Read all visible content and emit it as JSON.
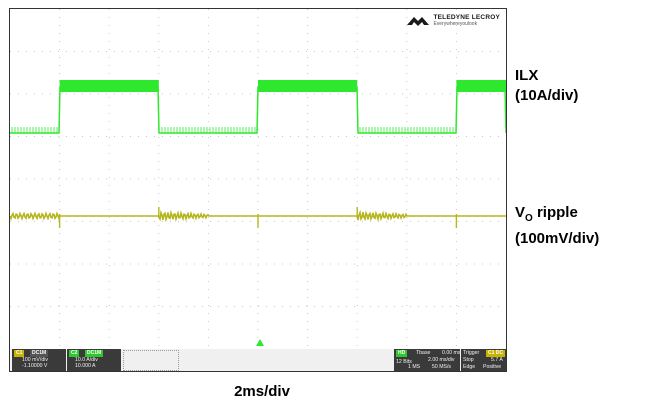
{
  "labels": {
    "ilx_name": "ILX",
    "ilx_scale": "(10A/div)",
    "vo_name_v": "V",
    "vo_name_sub": "O",
    "vo_name_rest": " ripple",
    "vo_scale": "(100mV/div)",
    "timebase": "2ms/div"
  },
  "logo": {
    "brand": "TELEDYNE LECROY",
    "tagline": "Everywhereyoulook"
  },
  "status_bar": {
    "ch1": {
      "badge": "C1",
      "tag": "DC1M",
      "scale": "100 mV/div",
      "offset": "-1.10000 V"
    },
    "ch2": {
      "badge": "C2",
      "tag": "DC1M",
      "scale": "10.0 A/div",
      "offset": "10.000 A"
    },
    "timebase": {
      "hd_badge": "HD",
      "label": "Tbase",
      "delay": "0.00 ms",
      "bits": "12 Bits",
      "per_div": "2.00 ms/div",
      "memory": "1 MS",
      "rate": "50 MS/s"
    },
    "trigger": {
      "label": "Trigger",
      "channel": "C1 DC",
      "mode": "Stop",
      "level": "5.7 A",
      "type": "Edge",
      "slope": "Positive"
    }
  },
  "colors": {
    "ilx_trace": "#2ee82e",
    "vo_trace": "#b5b51e",
    "grid_dots": "#c8c8c8",
    "ch1_badge": "#c8b400",
    "ch2_badge": "#2ec82e"
  },
  "waveform": {
    "ilx_high_segments_ms": [
      [
        2.0,
        6.0
      ],
      [
        10.0,
        14.0
      ],
      [
        18.0,
        20.0
      ]
    ],
    "vo_ripple_segments_ms": [
      [
        6.0,
        8.0
      ],
      [
        14.0,
        16.0
      ]
    ],
    "time_range_ms": [
      0,
      20
    ]
  }
}
